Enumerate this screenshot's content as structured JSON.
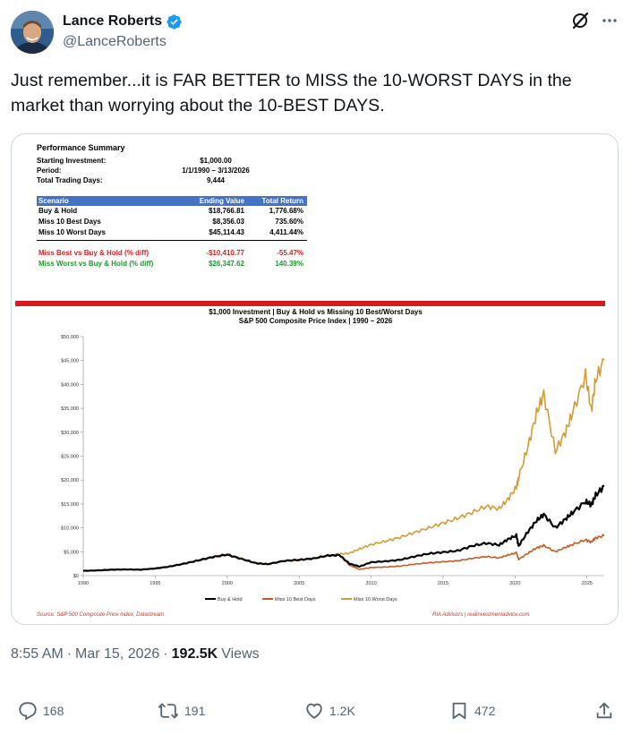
{
  "author": {
    "display_name": "Lance Roberts",
    "handle": "@LanceRoberts",
    "verified": true,
    "avatar_icon": "avatar-photo"
  },
  "tweet": {
    "text": "Just remember...it is FAR BETTER to MISS the 10-WORST DAYS in the market than worrying about the 10-BEST DAYS.",
    "time": "8:55 AM",
    "separator": "·",
    "date": "Mar 15, 2026",
    "views_count": "192.5K",
    "views_label": "Views"
  },
  "actions": {
    "replies": "168",
    "reposts": "191",
    "likes": "1.2K",
    "bookmarks": "472"
  },
  "icons": [
    "verified-badge-icon",
    "grok-icon",
    "more-icon",
    "reply-icon",
    "repost-icon",
    "like-icon",
    "bookmark-icon",
    "share-icon"
  ],
  "colors": {
    "verified": "#1d9bf0",
    "secondary_text": "#536471",
    "table_header": "#4472c4",
    "red_bar": "#d71920",
    "buy_hold": "#000000",
    "miss_best": "#c55a22",
    "miss_worst": "#d69a35"
  },
  "performance_summary": {
    "title": "Performance Summary",
    "rows": [
      {
        "label": "Starting Investment:",
        "value": "$1,000.00"
      },
      {
        "label": "Period:",
        "value": "1/1/1990 – 3/13/2026"
      },
      {
        "label": "Total Trading Days:",
        "value": "9,444"
      }
    ],
    "table_headers": {
      "scenario": "Scenario",
      "ending": "Ending Value",
      "total": "Total Return"
    },
    "scenarios": [
      {
        "name": "Buy & Hold",
        "ending": "$18,766.81",
        "total": "1,776.68%"
      },
      {
        "name": "Miss 10 Best Days",
        "ending": "$8,356.03",
        "total": "735.60%"
      },
      {
        "name": "Miss 10 Worst Days",
        "ending": "$45,114.43",
        "total": "4,411.44%"
      }
    ],
    "diffs": [
      {
        "name": "Miss Best vs Buy & Hold (% diff)",
        "ending": "-$10,410.77",
        "total": "-55.47%"
      },
      {
        "name": "Miss Worst vs Buy & Hold (% diff)",
        "ending": "$26,347.62",
        "total": "140.39%"
      }
    ]
  },
  "chart_data": {
    "type": "line",
    "title": "$1,000 Investment | Buy & Hold vs Missing 10 Best/Worst Days",
    "subtitle": "S&P 500 Composite Price Index | 1990 – 2026",
    "x_ticks": [
      "1990",
      "1995",
      "2000",
      "2005",
      "2010",
      "2015",
      "2020",
      "2025"
    ],
    "y_ticks": [
      "$0",
      "$5,000",
      "$10,000",
      "$15,000",
      "$20,000",
      "$25,000",
      "$30,000",
      "$35,000",
      "$40,000",
      "$45,000",
      "$50,000"
    ],
    "xlim": [
      1990,
      2026.2
    ],
    "ylim": [
      0,
      50000
    ],
    "legend_position": "bottom-center",
    "series": [
      {
        "name": "Buy & Hold",
        "x": [
          1990,
          1991,
          1992,
          1993,
          1994,
          1995,
          1996,
          1997,
          1998,
          1999,
          2000,
          2001,
          2002,
          2002.8,
          2004,
          2005,
          2006,
          2007,
          2007.8,
          2008.5,
          2009.2,
          2010,
          2011,
          2012,
          2013,
          2014,
          2015,
          2016,
          2017,
          2018,
          2018.9,
          2019.5,
          2020.1,
          2020.25,
          2020.9,
          2021.5,
          2022,
          2022.8,
          2023.5,
          2024,
          2024.9,
          2025.3,
          2025.6,
          2026.2
        ],
        "y": [
          1000,
          1100,
          1250,
          1300,
          1250,
          1500,
          1900,
          2500,
          3200,
          3900,
          4400,
          3500,
          2600,
          2400,
          3100,
          3300,
          3600,
          4200,
          4300,
          2500,
          1900,
          2800,
          3000,
          3300,
          4000,
          4600,
          4900,
          5200,
          6200,
          6800,
          6400,
          7600,
          8400,
          6200,
          9200,
          11500,
          12800,
          10000,
          11800,
          13200,
          15500,
          14800,
          16800,
          18766
        ]
      },
      {
        "name": "Miss 10 Best Days",
        "x": [
          1990,
          1991,
          1992,
          1993,
          1994,
          1995,
          1996,
          1997,
          1998,
          1999,
          2000,
          2001,
          2002,
          2002.8,
          2004,
          2005,
          2006,
          2007,
          2007.8,
          2008.5,
          2009.2,
          2010,
          2011,
          2012,
          2013,
          2014,
          2015,
          2016,
          2017,
          2018,
          2018.9,
          2019.5,
          2020.1,
          2020.25,
          2020.9,
          2021.5,
          2022,
          2022.8,
          2023.5,
          2024,
          2024.9,
          2025.3,
          2025.6,
          2026.2
        ],
        "y": [
          1000,
          1100,
          1250,
          1300,
          1250,
          1500,
          1900,
          2500,
          3200,
          3900,
          4400,
          3500,
          2600,
          2400,
          3100,
          3300,
          3600,
          4200,
          4300,
          2200,
          1300,
          1700,
          1800,
          2000,
          2400,
          2700,
          2900,
          3100,
          3600,
          4000,
          3700,
          4300,
          4800,
          3400,
          4700,
          5800,
          6300,
          5000,
          5900,
          6500,
          7500,
          7000,
          7900,
          8356
        ]
      },
      {
        "name": "Miss 10 Worst Days",
        "x": [
          1990,
          1991,
          1992,
          1993,
          1994,
          1995,
          1996,
          1997,
          1998,
          1999,
          2000,
          2001,
          2002,
          2002.8,
          2004,
          2005,
          2006,
          2007,
          2007.8,
          2008.5,
          2009.2,
          2010,
          2011,
          2012,
          2013,
          2014,
          2015,
          2016,
          2017,
          2018,
          2018.9,
          2019.5,
          2020.1,
          2020.25,
          2020.9,
          2021.5,
          2022,
          2022.8,
          2023.5,
          2024,
          2024.9,
          2025.3,
          2025.6,
          2026.2
        ],
        "y": [
          1000,
          1100,
          1250,
          1300,
          1250,
          1500,
          1900,
          2500,
          3200,
          3900,
          4400,
          3500,
          2600,
          2400,
          3100,
          3300,
          3600,
          4200,
          4500,
          4700,
          5600,
          6500,
          7200,
          8000,
          9000,
          10000,
          11000,
          12000,
          13200,
          14500,
          14000,
          16000,
          18500,
          20500,
          27000,
          34000,
          38000,
          26000,
          30000,
          34000,
          42000,
          34500,
          41000,
          45114
        ]
      }
    ]
  },
  "source": "Source: S&P 500 Composite Price Index, Datastream",
  "attribution": "RIA Advisors | realinvestmentadvice.com"
}
